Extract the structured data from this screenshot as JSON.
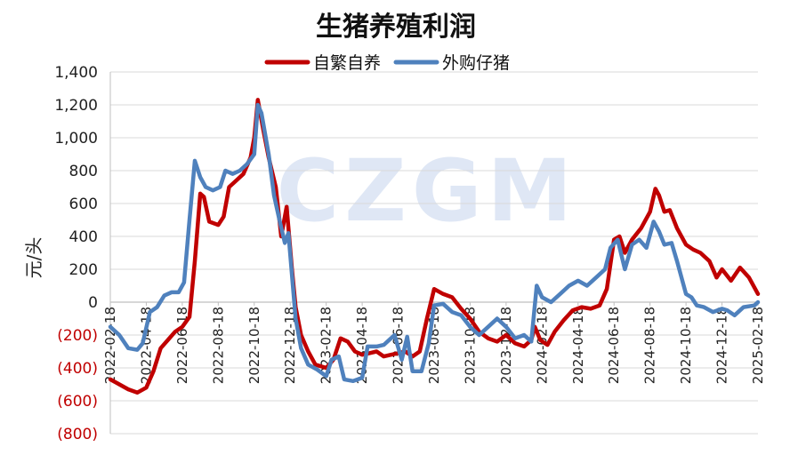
{
  "chart_data": {
    "type": "line",
    "title": "生猪养殖利润",
    "ylabel": "元/头",
    "ylim": [
      -800,
      1400
    ],
    "ytick_step": 200,
    "yticks": [
      "1,400",
      "1,200",
      "1,000",
      "800",
      "600",
      "400",
      "200",
      "0",
      "(200)",
      "(400)",
      "(600)",
      "(800)"
    ],
    "negative_tick_color": "#c00000",
    "grid": true,
    "legend_position": "top",
    "watermark": "CZGM",
    "categories": [
      "2022-02-18",
      "2022-04-18",
      "2022-06-18",
      "2022-08-18",
      "2022-10-18",
      "2022-12-18",
      "2023-02-18",
      "2023-04-18",
      "2023-06-18",
      "2023-08-18",
      "2023-10-18",
      "2023-12-18",
      "2024-02-18",
      "2024-04-18",
      "2024-06-18",
      "2024-08-18",
      "2024-10-18",
      "2024-12-18",
      "2025-02-18"
    ],
    "x": [
      0,
      2,
      4,
      6,
      8,
      10,
      12,
      14,
      16,
      18,
      20,
      22,
      24,
      26,
      28,
      30,
      32,
      34,
      36
    ],
    "series": [
      {
        "name": "自繁自养",
        "color": "#c00000",
        "points": [
          [
            0,
            -470
          ],
          [
            0.5,
            -500
          ],
          [
            1,
            -530
          ],
          [
            1.5,
            -550
          ],
          [
            2,
            -520
          ],
          [
            2.4,
            -420
          ],
          [
            2.8,
            -280
          ],
          [
            3.2,
            -230
          ],
          [
            3.6,
            -180
          ],
          [
            4,
            -150
          ],
          [
            4.4,
            -90
          ],
          [
            4.7,
            250
          ],
          [
            5,
            660
          ],
          [
            5.2,
            640
          ],
          [
            5.5,
            490
          ],
          [
            6,
            470
          ],
          [
            6.3,
            520
          ],
          [
            6.6,
            700
          ],
          [
            7,
            740
          ],
          [
            7.4,
            780
          ],
          [
            7.8,
            880
          ],
          [
            8,
            1000
          ],
          [
            8.2,
            1230
          ],
          [
            8.5,
            1050
          ],
          [
            8.8,
            880
          ],
          [
            9.2,
            700
          ],
          [
            9.5,
            400
          ],
          [
            9.8,
            580
          ],
          [
            10.1,
            200
          ],
          [
            10.3,
            -30
          ],
          [
            10.6,
            -200
          ],
          [
            11,
            -300
          ],
          [
            11.4,
            -380
          ],
          [
            12,
            -400
          ],
          [
            12.4,
            -350
          ],
          [
            12.8,
            -220
          ],
          [
            13.2,
            -240
          ],
          [
            13.6,
            -300
          ],
          [
            14,
            -320
          ],
          [
            14.4,
            -310
          ],
          [
            14.8,
            -300
          ],
          [
            15.2,
            -330
          ],
          [
            15.6,
            -320
          ],
          [
            16,
            -310
          ],
          [
            16.4,
            -300
          ],
          [
            16.8,
            -330
          ],
          [
            17.2,
            -300
          ],
          [
            17.6,
            -100
          ],
          [
            18,
            80
          ],
          [
            18.5,
            50
          ],
          [
            19,
            30
          ],
          [
            19.5,
            -40
          ],
          [
            20,
            -100
          ],
          [
            20.5,
            -180
          ],
          [
            21,
            -220
          ],
          [
            21.5,
            -240
          ],
          [
            22,
            -200
          ],
          [
            22.5,
            -250
          ],
          [
            23,
            -270
          ],
          [
            23.4,
            -230
          ],
          [
            23.6,
            -150
          ],
          [
            23.9,
            -230
          ],
          [
            24.3,
            -260
          ],
          [
            24.7,
            -180
          ],
          [
            25.2,
            -110
          ],
          [
            25.7,
            -50
          ],
          [
            26.2,
            -30
          ],
          [
            26.7,
            -40
          ],
          [
            27.2,
            -20
          ],
          [
            27.6,
            80
          ],
          [
            28,
            380
          ],
          [
            28.3,
            400
          ],
          [
            28.6,
            300
          ],
          [
            29,
            380
          ],
          [
            29.5,
            450
          ],
          [
            30,
            550
          ],
          [
            30.3,
            690
          ],
          [
            30.5,
            650
          ],
          [
            30.8,
            550
          ],
          [
            31.1,
            560
          ],
          [
            31.5,
            450
          ],
          [
            32,
            350
          ],
          [
            32.4,
            320
          ],
          [
            32.8,
            300
          ],
          [
            33.3,
            250
          ],
          [
            33.7,
            150
          ],
          [
            34,
            200
          ],
          [
            34.5,
            130
          ],
          [
            35,
            210
          ],
          [
            35.5,
            150
          ],
          [
            36,
            50
          ]
        ]
      },
      {
        "name": "外购仔猪",
        "color": "#4f81bd",
        "points": [
          [
            0,
            -150
          ],
          [
            0.5,
            -200
          ],
          [
            1,
            -280
          ],
          [
            1.5,
            -290
          ],
          [
            1.8,
            -250
          ],
          [
            2.2,
            -60
          ],
          [
            2.6,
            -30
          ],
          [
            3,
            40
          ],
          [
            3.4,
            60
          ],
          [
            3.8,
            60
          ],
          [
            4.1,
            120
          ],
          [
            4.4,
            500
          ],
          [
            4.7,
            860
          ],
          [
            5,
            760
          ],
          [
            5.3,
            700
          ],
          [
            5.7,
            680
          ],
          [
            6.1,
            700
          ],
          [
            6.4,
            800
          ],
          [
            6.8,
            780
          ],
          [
            7.2,
            800
          ],
          [
            7.6,
            840
          ],
          [
            8,
            900
          ],
          [
            8.2,
            1200
          ],
          [
            8.4,
            1150
          ],
          [
            8.8,
            900
          ],
          [
            9.1,
            650
          ],
          [
            9.4,
            500
          ],
          [
            9.7,
            360
          ],
          [
            9.9,
            420
          ],
          [
            10.3,
            -100
          ],
          [
            10.6,
            -280
          ],
          [
            11,
            -380
          ],
          [
            11.5,
            -410
          ],
          [
            12,
            -450
          ],
          [
            12.3,
            -350
          ],
          [
            12.7,
            -330
          ],
          [
            13,
            -470
          ],
          [
            13.5,
            -480
          ],
          [
            14,
            -460
          ],
          [
            14.3,
            -270
          ],
          [
            14.8,
            -270
          ],
          [
            15.2,
            -260
          ],
          [
            15.8,
            -200
          ],
          [
            16.2,
            -350
          ],
          [
            16.5,
            -210
          ],
          [
            16.8,
            -420
          ],
          [
            17.3,
            -420
          ],
          [
            17.7,
            -250
          ],
          [
            18,
            -20
          ],
          [
            18.5,
            -10
          ],
          [
            19,
            -60
          ],
          [
            19.5,
            -80
          ],
          [
            20,
            -150
          ],
          [
            20.5,
            -200
          ],
          [
            21,
            -150
          ],
          [
            21.5,
            -100
          ],
          [
            22,
            -150
          ],
          [
            22.5,
            -220
          ],
          [
            23,
            -200
          ],
          [
            23.4,
            -240
          ],
          [
            23.7,
            100
          ],
          [
            24,
            30
          ],
          [
            24.5,
            0
          ],
          [
            25,
            50
          ],
          [
            25.5,
            100
          ],
          [
            26,
            130
          ],
          [
            26.5,
            100
          ],
          [
            27,
            150
          ],
          [
            27.5,
            200
          ],
          [
            27.8,
            330
          ],
          [
            28.2,
            380
          ],
          [
            28.6,
            200
          ],
          [
            29,
            350
          ],
          [
            29.4,
            380
          ],
          [
            29.8,
            330
          ],
          [
            30.2,
            490
          ],
          [
            30.5,
            430
          ],
          [
            30.8,
            350
          ],
          [
            31.2,
            360
          ],
          [
            31.5,
            250
          ],
          [
            32,
            50
          ],
          [
            32.3,
            30
          ],
          [
            32.6,
            -20
          ],
          [
            33,
            -30
          ],
          [
            33.5,
            -60
          ],
          [
            34,
            -40
          ],
          [
            34.3,
            -50
          ],
          [
            34.7,
            -80
          ],
          [
            35.2,
            -30
          ],
          [
            35.8,
            -20
          ],
          [
            36,
            0
          ]
        ]
      }
    ]
  }
}
